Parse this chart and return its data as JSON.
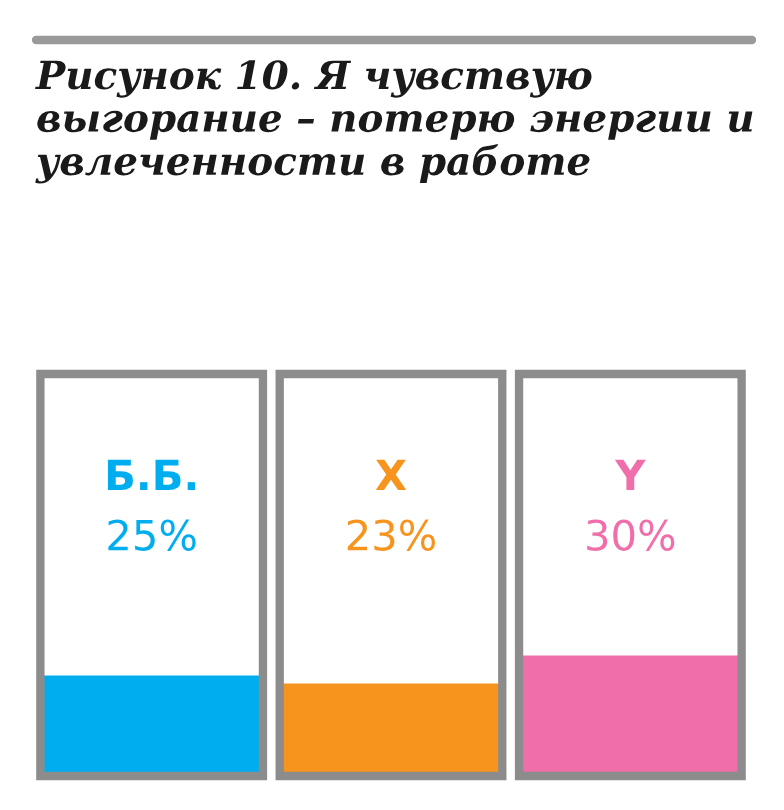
{
  "chart_data": {
    "type": "bar",
    "title": "Рисунок 10. Я чувствую выгорание – потерю энергии и увлеченности в работе",
    "categories": [
      "Б.Б.",
      "X",
      "Y"
    ],
    "values": [
      25,
      23,
      30
    ],
    "colors": [
      "#00aeef",
      "#f7941d",
      "#f06eaa"
    ],
    "value_labels": [
      "25%",
      "23%",
      "30%"
    ],
    "ylim": [
      0,
      100
    ],
    "tick_labels": false
  }
}
